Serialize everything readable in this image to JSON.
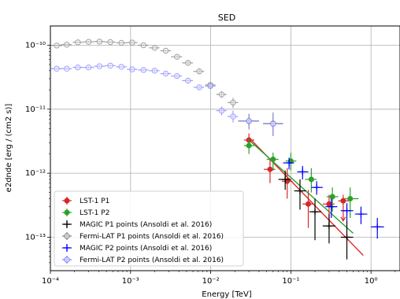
{
  "chart_data": {
    "type": "scatter",
    "title": "SED",
    "xlabel": "Energy [TeV]",
    "ylabel": "e2dnde [erg / (cm2 s)]",
    "xscale": "log",
    "yscale": "log",
    "xlim": [
      0.0001,
      2.3
    ],
    "ylim": [
      3e-14,
      2e-10
    ],
    "xticks": [
      {
        "value": 0.0001,
        "label": "10⁻⁴"
      },
      {
        "value": 0.001,
        "label": "10⁻³"
      },
      {
        "value": 0.01,
        "label": "10⁻²"
      },
      {
        "value": 0.1,
        "label": "10⁻¹"
      },
      {
        "value": 1,
        "label": "10⁰"
      }
    ],
    "yticks": [
      {
        "value": 1e-13,
        "label": "10⁻¹³"
      },
      {
        "value": 1e-12,
        "label": "10⁻¹²"
      },
      {
        "value": 1e-11,
        "label": "10⁻¹¹"
      },
      {
        "value": 1e-10,
        "label": "10⁻¹⁰"
      }
    ],
    "grid": true,
    "legend_position": "lower-left",
    "models": [
      {
        "color": "#d62728",
        "x": [
          0.03,
          0.8
        ],
        "y": [
          3.6e-12,
          5.2e-14
        ]
      },
      {
        "color": "#2ca02c",
        "x": [
          0.03,
          0.6
        ],
        "y": [
          3.3e-12,
          1.15e-13
        ]
      }
    ],
    "series": [
      {
        "name": "LST-1 P1",
        "marker": "circle-filled",
        "color": "#d62728",
        "points": [
          {
            "x": 0.03,
            "y": 3.3e-12,
            "xerr": [
              0.026,
              0.035
            ],
            "yerr": [
              2.6e-12,
              4.2e-12
            ]
          },
          {
            "x": 0.055,
            "y": 1.15e-12,
            "xerr": [
              0.046,
              0.064
            ],
            "yerr": [
              7e-13,
              1.7e-12
            ]
          },
          {
            "x": 0.09,
            "y": 7.5e-13,
            "xerr": [
              0.077,
              0.105
            ],
            "yerr": [
              4e-13,
              1.2e-12
            ]
          },
          {
            "x": 0.165,
            "y": 3.3e-13,
            "xerr": [
              0.14,
              0.19
            ],
            "yerr": [
              1.4e-13,
              5.5e-13
            ]
          },
          {
            "x": 0.3,
            "y": 3.3e-13,
            "xerr": [
              0.25,
              0.35
            ],
            "yerr": [
              1.5e-13,
              4.6e-13
            ]
          },
          {
            "x": 0.45,
            "y": 3.7e-13,
            "xerr": [
              0.39,
              0.53
            ],
            "yerr": [
              1.8e-13,
              4.6e-13
            ],
            "upper_limit": true
          }
        ]
      },
      {
        "name": "LST-1 P2",
        "marker": "circle-filled",
        "color": "#2ca02c",
        "points": [
          {
            "x": 0.03,
            "y": 2.7e-12,
            "xerr": [
              0.026,
              0.035
            ],
            "yerr": [
              2e-12,
              3.5e-12
            ]
          },
          {
            "x": 0.06,
            "y": 1.65e-12,
            "xerr": [
              0.05,
              0.07
            ],
            "yerr": [
              1.1e-12,
              2.1e-12
            ]
          },
          {
            "x": 0.1,
            "y": 1.55e-12,
            "xerr": [
              0.086,
              0.117
            ],
            "yerr": [
              1.1e-12,
              2.1e-12
            ]
          },
          {
            "x": 0.18,
            "y": 8e-13,
            "xerr": [
              0.15,
              0.21
            ],
            "yerr": [
              5e-13,
              1.2e-12
            ]
          },
          {
            "x": 0.33,
            "y": 4.3e-13,
            "xerr": [
              0.28,
              0.39
            ],
            "yerr": [
              2.5e-13,
              6e-13
            ]
          },
          {
            "x": 0.55,
            "y": 4e-13,
            "xerr": [
              0.47,
              0.7
            ],
            "yerr": [
              2e-13,
              6e-13
            ]
          }
        ]
      },
      {
        "name": "MAGIC P1 points (Ansoldi et al. 2016)",
        "marker": "plus",
        "color": "#000000",
        "points": [
          {
            "x": 0.085,
            "y": 8e-13,
            "xerr": [
              0.07,
              0.1
            ],
            "yerr": [
              5.5e-13,
              1.1e-12
            ]
          },
          {
            "x": 0.13,
            "y": 5.3e-13,
            "xerr": [
              0.11,
              0.155
            ],
            "yerr": [
              2.7e-13,
              8e-13
            ]
          },
          {
            "x": 0.2,
            "y": 2.5e-13,
            "xerr": [
              0.17,
              0.24
            ],
            "yerr": [
              9e-14,
              4e-13
            ]
          },
          {
            "x": 0.3,
            "y": 1.5e-13,
            "xerr": [
              0.25,
              0.36
            ],
            "yerr": [
              8e-14,
              2.3e-13
            ]
          },
          {
            "x": 0.5,
            "y": 1e-13,
            "xerr": [
              0.42,
              0.6
            ],
            "yerr": [
              4.5e-14,
              1.8e-13
            ]
          }
        ]
      },
      {
        "name": "Fermi-LAT P1 points (Ansoldi et al. 2016)",
        "marker": "circle-open",
        "color": "#808080",
        "points": [
          {
            "x": 0.00012,
            "y": 9.9e-11,
            "xerr": [
              0.0001,
              0.00014
            ],
            "yerr": [
              9.5e-11,
              1.03e-10
            ]
          },
          {
            "x": 0.00016,
            "y": 1.02e-10,
            "xerr": [
              0.000135,
              0.000185
            ],
            "yerr": [
              9.8e-11,
              1.06e-10
            ]
          },
          {
            "x": 0.00022,
            "y": 1.11e-10,
            "xerr": [
              0.00019,
              0.00026
            ],
            "yerr": [
              1.07e-10,
              1.15e-10
            ]
          },
          {
            "x": 0.0003,
            "y": 1.13e-10,
            "xerr": [
              0.00026,
              0.00035
            ],
            "yerr": [
              1.09e-10,
              1.17e-10
            ]
          },
          {
            "x": 0.00041,
            "y": 1.14e-10,
            "xerr": [
              0.00035,
              0.00048
            ],
            "yerr": [
              1.1e-10,
              1.18e-10
            ]
          },
          {
            "x": 0.00056,
            "y": 1.12e-10,
            "xerr": [
              0.00048,
              0.00065
            ],
            "yerr": [
              1.08e-10,
              1.16e-10
            ]
          },
          {
            "x": 0.00077,
            "y": 1.09e-10,
            "xerr": [
              0.00066,
              0.0009
            ],
            "yerr": [
              1.05e-10,
              1.13e-10
            ]
          },
          {
            "x": 0.00105,
            "y": 1.1e-10,
            "xerr": [
              0.0009,
              0.00122
            ],
            "yerr": [
              1.06e-10,
              1.14e-10
            ]
          },
          {
            "x": 0.00145,
            "y": 1e-10,
            "xerr": [
              0.00124,
              0.00168
            ],
            "yerr": [
              9.6e-11,
              1.04e-10
            ]
          },
          {
            "x": 0.002,
            "y": 9.1e-11,
            "xerr": [
              0.0017,
              0.0023
            ],
            "yerr": [
              8.7e-11,
              9.5e-11
            ]
          },
          {
            "x": 0.00275,
            "y": 8.2e-11,
            "xerr": [
              0.00235,
              0.0032
            ],
            "yerr": [
              7.8e-11,
              8.6e-11
            ]
          },
          {
            "x": 0.0038,
            "y": 6.6e-11,
            "xerr": [
              0.0032,
              0.0044
            ],
            "yerr": [
              6.2e-11,
              7e-11
            ]
          },
          {
            "x": 0.0052,
            "y": 5.3e-11,
            "xerr": [
              0.0044,
              0.006
            ],
            "yerr": [
              4.9e-11,
              5.7e-11
            ]
          },
          {
            "x": 0.0072,
            "y": 3.9e-11,
            "xerr": [
              0.0061,
              0.0083
            ],
            "yerr": [
              3.6e-11,
              4.2e-11
            ]
          },
          {
            "x": 0.0099,
            "y": 2.4e-11,
            "xerr": [
              0.0085,
              0.0115
            ],
            "yerr": [
              2.2e-11,
              2.6e-11
            ]
          },
          {
            "x": 0.0137,
            "y": 1.7e-11,
            "xerr": [
              0.0117,
              0.0158
            ],
            "yerr": [
              1.5e-11,
              1.9e-11
            ]
          },
          {
            "x": 0.019,
            "y": 1.27e-11,
            "xerr": [
              0.0162,
              0.022
            ],
            "yerr": [
              1.05e-11,
              1.5e-11
            ]
          },
          {
            "x": 0.03,
            "y": 6.5e-12,
            "xerr": [
              0.022,
              0.04
            ],
            "yerr": [
              4.8e-12,
              8.5e-12
            ]
          },
          {
            "x": 0.06,
            "y": 6e-12,
            "xerr": [
              0.045,
              0.08
            ],
            "yerr": [
              3.8e-12,
              9e-12
            ]
          }
        ]
      },
      {
        "name": "MAGIC P2 points (Ansoldi et al. 2016)",
        "marker": "plus",
        "color": "#0000ff",
        "points": [
          {
            "x": 0.095,
            "y": 1.45e-12,
            "xerr": [
              0.08,
              0.11
            ],
            "yerr": [
              1.15e-12,
              1.75e-12
            ]
          },
          {
            "x": 0.14,
            "y": 1.05e-12,
            "xerr": [
              0.12,
              0.165
            ],
            "yerr": [
              8e-13,
              1.3e-12
            ]
          },
          {
            "x": 0.21,
            "y": 6e-13,
            "xerr": [
              0.18,
              0.25
            ],
            "yerr": [
              4.6e-13,
              7.5e-13
            ]
          },
          {
            "x": 0.32,
            "y": 3e-13,
            "xerr": [
              0.27,
              0.38
            ],
            "yerr": [
              2e-13,
              4e-13
            ]
          },
          {
            "x": 0.5,
            "y": 2.6e-13,
            "xerr": [
              0.42,
              0.6
            ],
            "yerr": [
              1.8e-13,
              3.4e-13
            ]
          },
          {
            "x": 0.75,
            "y": 2.3e-13,
            "xerr": [
              0.63,
              0.9
            ],
            "yerr": [
              1.6e-13,
              3e-13
            ]
          },
          {
            "x": 1.2,
            "y": 1.45e-13,
            "xerr": [
              1.0,
              1.45
            ],
            "yerr": [
              9.5e-14,
              2e-13
            ]
          }
        ]
      },
      {
        "name": "Fermi-LAT P2 points (Ansoldi et al. 2016)",
        "marker": "circle-open",
        "color": "#8080ff",
        "points": [
          {
            "x": 0.00012,
            "y": 4.3e-11,
            "xerr": [
              0.0001,
              0.00014
            ],
            "yerr": [
              4.1e-11,
              4.5e-11
            ]
          },
          {
            "x": 0.00016,
            "y": 4.3e-11,
            "xerr": [
              0.000135,
              0.000185
            ],
            "yerr": [
              4.1e-11,
              4.5e-11
            ]
          },
          {
            "x": 0.00022,
            "y": 4.5e-11,
            "xerr": [
              0.00019,
              0.00026
            ],
            "yerr": [
              4.3e-11,
              4.7e-11
            ]
          },
          {
            "x": 0.0003,
            "y": 4.5e-11,
            "xerr": [
              0.00026,
              0.00035
            ],
            "yerr": [
              4.3e-11,
              4.7e-11
            ]
          },
          {
            "x": 0.00041,
            "y": 4.7e-11,
            "xerr": [
              0.00035,
              0.00048
            ],
            "yerr": [
              4.5e-11,
              4.9e-11
            ]
          },
          {
            "x": 0.00056,
            "y": 4.8e-11,
            "xerr": [
              0.00048,
              0.00065
            ],
            "yerr": [
              4.6e-11,
              5e-11
            ]
          },
          {
            "x": 0.00077,
            "y": 4.6e-11,
            "xerr": [
              0.00066,
              0.0009
            ],
            "yerr": [
              4.4e-11,
              4.8e-11
            ]
          },
          {
            "x": 0.00105,
            "y": 4.2e-11,
            "xerr": [
              0.0009,
              0.00122
            ],
            "yerr": [
              4e-11,
              4.4e-11
            ]
          },
          {
            "x": 0.00145,
            "y": 4.1e-11,
            "xerr": [
              0.00124,
              0.00168
            ],
            "yerr": [
              3.9e-11,
              4.3e-11
            ]
          },
          {
            "x": 0.002,
            "y": 4e-11,
            "xerr": [
              0.0017,
              0.0023
            ],
            "yerr": [
              3.8e-11,
              4.2e-11
            ]
          },
          {
            "x": 0.00275,
            "y": 3.6e-11,
            "xerr": [
              0.00235,
              0.0032
            ],
            "yerr": [
              3.4e-11,
              3.8e-11
            ]
          },
          {
            "x": 0.0038,
            "y": 3.3e-11,
            "xerr": [
              0.0032,
              0.0044
            ],
            "yerr": [
              3.1e-11,
              3.5e-11
            ]
          },
          {
            "x": 0.0052,
            "y": 2.8e-11,
            "xerr": [
              0.0044,
              0.006
            ],
            "yerr": [
              2.6e-11,
              3e-11
            ]
          },
          {
            "x": 0.0072,
            "y": 2.2e-11,
            "xerr": [
              0.0061,
              0.0083
            ],
            "yerr": [
              2.05e-11,
              2.35e-11
            ]
          },
          {
            "x": 0.0099,
            "y": 2.3e-11,
            "xerr": [
              0.0085,
              0.0115
            ],
            "yerr": [
              2.1e-11,
              2.5e-11
            ]
          },
          {
            "x": 0.0137,
            "y": 9.5e-12,
            "xerr": [
              0.0117,
              0.0158
            ],
            "yerr": [
              8e-12,
              1.1e-11
            ]
          },
          {
            "x": 0.019,
            "y": 7.7e-12,
            "xerr": [
              0.0162,
              0.022
            ],
            "yerr": [
              6.2e-12,
              9.5e-12
            ]
          },
          {
            "x": 0.03,
            "y": 6.6e-12,
            "xerr": [
              0.022,
              0.04
            ],
            "yerr": [
              5e-12,
              8.5e-12
            ]
          },
          {
            "x": 0.06,
            "y": 5.9e-12,
            "xerr": [
              0.045,
              0.08
            ],
            "yerr": [
              3.8e-12,
              8.5e-12
            ]
          }
        ]
      }
    ]
  }
}
